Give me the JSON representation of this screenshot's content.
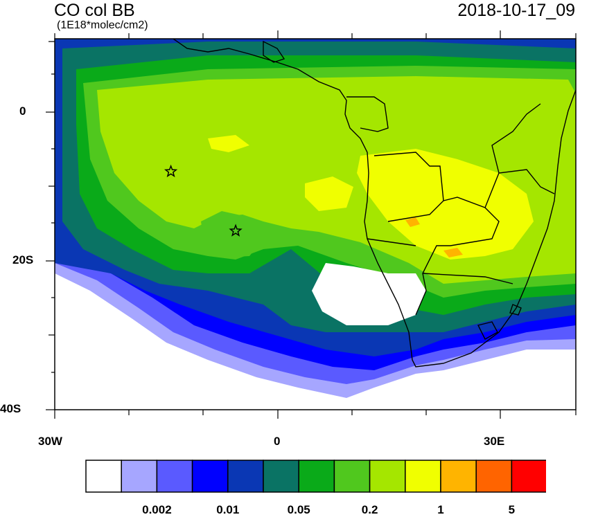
{
  "map": {
    "title": "CO col BB",
    "units": "(1E18*molec/cm2)",
    "datetime": "2018-10-17_09",
    "y_ticks": [
      "0",
      "20S",
      "40S"
    ],
    "x_ticks": [
      "30W",
      "0",
      "30E"
    ],
    "markers": [
      {
        "lon": -14.4,
        "lat": -7.9
      },
      {
        "lon": -5.7,
        "lat": -15.9
      }
    ]
  },
  "colorbar": {
    "colors": [
      "#ffffff",
      "#a6a6ff",
      "#5a5aff",
      "#0000ff",
      "#0a37b4",
      "#0a7364",
      "#0aaa19",
      "#50c81e",
      "#a5e600",
      "#f0ff00",
      "#ffb400",
      "#ff6400",
      "#ff0000"
    ],
    "labels": [
      "0.002",
      "0.01",
      "0.05",
      "0.2",
      "1",
      "5"
    ]
  }
}
